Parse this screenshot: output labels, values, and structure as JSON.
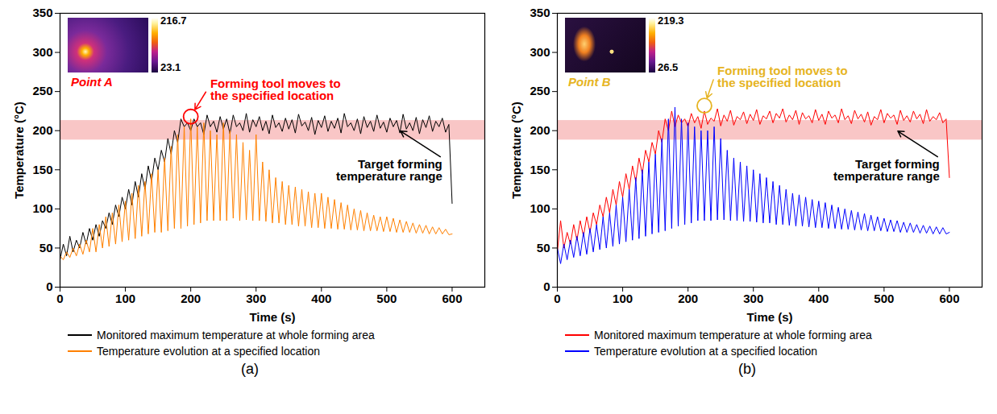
{
  "chart_data": [
    {
      "type": "line",
      "caption": "(a)",
      "xlabel": "Time (s)",
      "ylabel": "Temperature (°C)",
      "xlim": [
        0,
        650
      ],
      "xticks": [
        0,
        100,
        200,
        300,
        400,
        500,
        600
      ],
      "ylim": [
        0,
        350
      ],
      "yticks": [
        0,
        50,
        100,
        150,
        200,
        250,
        300,
        350
      ],
      "grid": false,
      "legend": "bottom",
      "target_band": [
        188,
        213
      ],
      "x": [
        0,
        5,
        10,
        15,
        20,
        25,
        30,
        35,
        40,
        45,
        50,
        55,
        60,
        65,
        70,
        75,
        80,
        85,
        90,
        95,
        100,
        105,
        110,
        115,
        120,
        125,
        130,
        135,
        140,
        145,
        150,
        155,
        160,
        165,
        170,
        175,
        180,
        185,
        190,
        195,
        200,
        205,
        210,
        215,
        220,
        225,
        230,
        235,
        240,
        245,
        250,
        255,
        260,
        265,
        270,
        275,
        280,
        285,
        290,
        295,
        300,
        305,
        310,
        315,
        320,
        325,
        330,
        335,
        340,
        345,
        350,
        355,
        360,
        365,
        370,
        375,
        380,
        385,
        390,
        395,
        400,
        405,
        410,
        415,
        420,
        425,
        430,
        435,
        440,
        445,
        450,
        455,
        460,
        465,
        470,
        475,
        480,
        485,
        490,
        495,
        500,
        505,
        510,
        515,
        520,
        525,
        530,
        535,
        540,
        545,
        550,
        555,
        560,
        565,
        570,
        575,
        580,
        585,
        590,
        595,
        600
      ],
      "series": [
        {
          "name": "Monitored maximum temperature at whole forming area",
          "color": "#000000",
          "values": [
            35,
            55,
            40,
            65,
            45,
            60,
            50,
            70,
            55,
            75,
            60,
            80,
            65,
            85,
            75,
            95,
            80,
            105,
            90,
            115,
            100,
            125,
            105,
            135,
            115,
            145,
            125,
            155,
            135,
            165,
            150,
            175,
            160,
            190,
            170,
            200,
            185,
            215,
            205,
            210,
            200,
            215,
            205,
            210,
            195,
            220,
            205,
            212,
            198,
            218,
            202,
            215,
            196,
            220,
            205,
            210,
            200,
            222,
            198,
            214,
            205,
            218,
            200,
            212,
            196,
            220,
            204,
            210,
            199,
            216,
            202,
            214,
            197,
            221,
            206,
            211,
            200,
            217,
            195,
            213,
            204,
            219,
            199,
            212,
            203,
            216,
            197,
            222,
            205,
            210,
            200,
            215,
            196,
            218,
            204,
            212,
            199,
            220,
            203,
            211,
            198,
            216,
            205,
            213,
            197,
            221,
            202,
            210,
            200,
            217,
            196,
            214,
            204,
            219,
            199,
            212,
            205,
            216,
            198,
            208,
            107
          ]
        },
        {
          "name": "Temperature evolution at a specified location",
          "color": "#ff8000",
          "values": [
            40,
            35,
            45,
            38,
            50,
            40,
            55,
            42,
            60,
            45,
            75,
            45,
            80,
            50,
            90,
            52,
            95,
            55,
            105,
            58,
            110,
            60,
            120,
            62,
            130,
            65,
            135,
            68,
            145,
            70,
            150,
            70,
            165,
            72,
            180,
            75,
            195,
            75,
            205,
            78,
            215,
            80,
            205,
            82,
            210,
            85,
            200,
            85,
            195,
            85,
            210,
            85,
            200,
            88,
            195,
            85,
            185,
            86,
            175,
            85,
            195,
            85,
            160,
            84,
            150,
            82,
            140,
            82,
            135,
            80,
            130,
            80,
            128,
            78,
            125,
            78,
            122,
            76,
            120,
            76,
            120,
            75,
            115,
            75,
            112,
            74,
            108,
            74,
            105,
            73,
            100,
            73,
            98,
            72,
            95,
            72,
            92,
            72,
            90,
            71,
            90,
            71,
            88,
            70,
            86,
            70,
            84,
            70,
            82,
            69,
            80,
            69,
            79,
            68,
            77,
            68,
            76,
            68,
            74,
            67,
            68
          ]
        }
      ],
      "annotations": [
        {
          "text": "Forming tool moves to the specified location",
          "xy": [
            200,
            218
          ],
          "xytext": [
            225,
            252
          ],
          "color": "#ff0000",
          "marker": "circle"
        },
        {
          "text": "Target forming temperature range",
          "xy": [
            520,
            200
          ],
          "xytext": [
            585,
            165
          ],
          "color": "#000000"
        }
      ],
      "inset": {
        "label": "Point A",
        "color": "#ff0000",
        "colorbar": {
          "range": [
            23.1,
            216.7
          ]
        }
      }
    },
    {
      "type": "line",
      "caption": "(b)",
      "xlabel": "Time (s)",
      "ylabel": "Temperature (°C)",
      "xlim": [
        0,
        650
      ],
      "xticks": [
        0,
        100,
        200,
        300,
        400,
        500,
        600
      ],
      "ylim": [
        0,
        350
      ],
      "yticks": [
        0,
        50,
        100,
        150,
        200,
        250,
        300,
        350
      ],
      "grid": false,
      "legend": "bottom",
      "target_band": [
        188,
        213
      ],
      "x": [
        0,
        5,
        10,
        15,
        20,
        25,
        30,
        35,
        40,
        45,
        50,
        55,
        60,
        65,
        70,
        75,
        80,
        85,
        90,
        95,
        100,
        105,
        110,
        115,
        120,
        125,
        130,
        135,
        140,
        145,
        150,
        155,
        160,
        165,
        170,
        175,
        180,
        185,
        190,
        195,
        200,
        205,
        210,
        215,
        220,
        225,
        230,
        235,
        240,
        245,
        250,
        255,
        260,
        265,
        270,
        275,
        280,
        285,
        290,
        295,
        300,
        305,
        310,
        315,
        320,
        325,
        330,
        335,
        340,
        345,
        350,
        355,
        360,
        365,
        370,
        375,
        380,
        385,
        390,
        395,
        400,
        405,
        410,
        415,
        420,
        425,
        430,
        435,
        440,
        445,
        450,
        455,
        460,
        465,
        470,
        475,
        480,
        485,
        490,
        495,
        500,
        505,
        510,
        515,
        520,
        525,
        530,
        535,
        540,
        545,
        550,
        555,
        560,
        565,
        570,
        575,
        580,
        585,
        590,
        595,
        600
      ],
      "series": [
        {
          "name": "Monitored maximum temperature at whole forming area",
          "color": "#ff0000",
          "values": [
            45,
            85,
            50,
            70,
            55,
            80,
            60,
            85,
            65,
            90,
            70,
            95,
            80,
            105,
            90,
            115,
            95,
            125,
            105,
            135,
            115,
            145,
            125,
            155,
            135,
            165,
            145,
            175,
            160,
            185,
            170,
            200,
            185,
            215,
            200,
            225,
            205,
            220,
            210,
            215,
            205,
            222,
            210,
            218,
            203,
            225,
            208,
            216,
            212,
            228,
            206,
            220,
            212,
            226,
            207,
            218,
            214,
            224,
            209,
            221,
            213,
            227,
            208,
            219,
            215,
            225,
            210,
            222,
            216,
            228,
            211,
            220,
            214,
            226,
            208,
            223,
            215,
            219,
            210,
            227,
            213,
            221,
            208,
            225,
            216,
            220,
            210,
            228,
            214,
            219,
            209,
            226,
            215,
            221,
            211,
            224,
            207,
            218,
            214,
            227,
            210,
            222,
            216,
            220,
            208,
            226,
            213,
            219,
            211,
            225,
            215,
            221,
            209,
            227,
            212,
            218,
            214,
            223,
            210,
            215,
            140
          ]
        },
        {
          "name": "Temperature evolution at a specified location",
          "color": "#0000ff",
          "values": [
            50,
            30,
            55,
            35,
            60,
            38,
            65,
            40,
            70,
            42,
            75,
            45,
            80,
            48,
            90,
            50,
            95,
            52,
            105,
            55,
            115,
            58,
            125,
            60,
            140,
            62,
            150,
            65,
            160,
            68,
            170,
            70,
            190,
            72,
            215,
            75,
            230,
            78,
            215,
            80,
            210,
            82,
            205,
            85,
            200,
            85,
            200,
            85,
            205,
            86,
            190,
            86,
            175,
            85,
            165,
            85,
            160,
            84,
            155,
            84,
            150,
            83,
            145,
            82,
            140,
            82,
            135,
            80,
            130,
            80,
            125,
            79,
            120,
            78,
            118,
            78,
            115,
            77,
            112,
            76,
            110,
            76,
            108,
            75,
            105,
            75,
            102,
            74,
            100,
            74,
            98,
            73,
            96,
            73,
            94,
            72,
            92,
            72,
            90,
            72,
            88,
            71,
            86,
            71,
            85,
            70,
            83,
            70,
            82,
            70,
            80,
            69,
            79,
            69,
            78,
            68,
            77,
            68,
            76,
            68,
            70
          ]
        }
      ],
      "annotations": [
        {
          "text": "Forming tool moves to the specified location",
          "xy": [
            225,
            232
          ],
          "xytext": [
            240,
            268
          ],
          "color": "#e6b422",
          "marker": "circle"
        },
        {
          "text": "Target forming temperature range",
          "xy": [
            520,
            200
          ],
          "xytext": [
            585,
            165
          ],
          "color": "#000000"
        }
      ],
      "inset": {
        "label": "Point B",
        "color": "#e6b422",
        "colorbar": {
          "range": [
            26.5,
            219.3
          ]
        }
      }
    }
  ]
}
